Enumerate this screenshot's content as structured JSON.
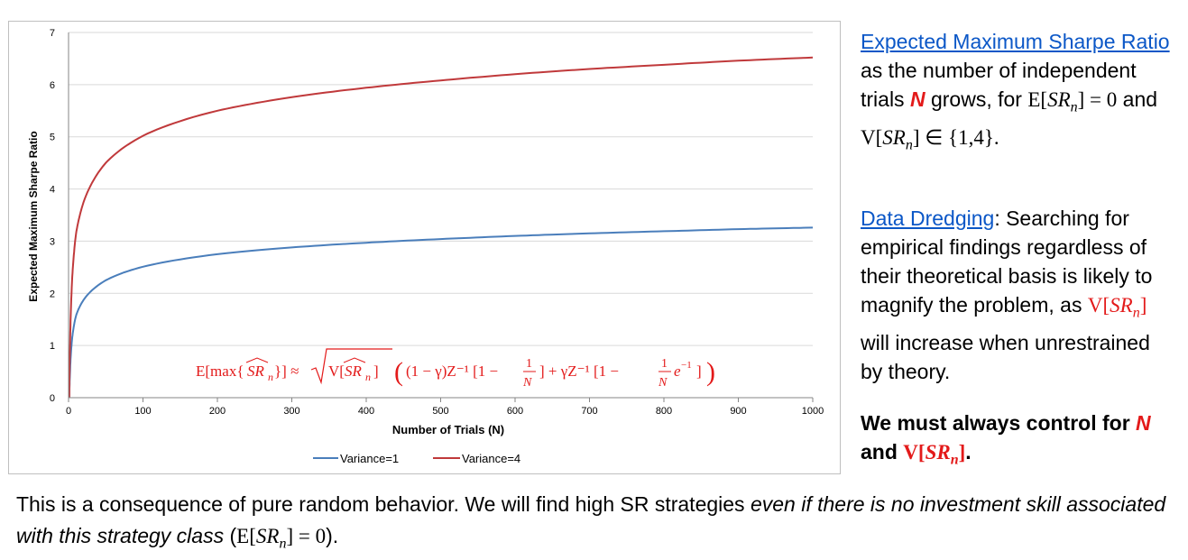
{
  "chart_data": {
    "type": "line",
    "ylabel": "Expected Maximum Sharpe Ratio",
    "xlabel": "Number of Trials (N)",
    "xlim": [
      0,
      1000
    ],
    "ylim": [
      0,
      7
    ],
    "x_ticks": [
      "0",
      "100",
      "200",
      "300",
      "400",
      "500",
      "600",
      "700",
      "800",
      "900",
      "1000"
    ],
    "y_ticks": [
      "0",
      "1",
      "2",
      "3",
      "4",
      "5",
      "6",
      "7"
    ],
    "grid": "horizontal",
    "legend_position": "bottom",
    "series": [
      {
        "name": "Variance=1",
        "color": "#4a7ebb",
        "x": [
          1,
          2,
          5,
          10,
          20,
          50,
          100,
          200,
          300,
          400,
          500,
          600,
          700,
          800,
          900,
          1000
        ],
        "values": [
          0,
          0.52,
          1.16,
          1.57,
          1.87,
          2.25,
          2.51,
          2.75,
          2.88,
          2.97,
          3.04,
          3.1,
          3.15,
          3.19,
          3.23,
          3.26
        ]
      },
      {
        "name": "Variance=4",
        "color": "#c0393b",
        "x": [
          1,
          2,
          5,
          10,
          20,
          50,
          100,
          200,
          300,
          400,
          500,
          600,
          700,
          800,
          900,
          1000
        ],
        "values": [
          0,
          1.04,
          2.32,
          3.14,
          3.74,
          4.5,
          5.02,
          5.5,
          5.76,
          5.94,
          6.08,
          6.2,
          6.3,
          6.38,
          6.46,
          6.52
        ]
      }
    ],
    "annotation": {
      "lhs": "E[max{",
      "sr": "SR",
      "sub": "n",
      "mid": "}] ≈ √V[",
      "rhs": "] ((1 − γ)Z⁻¹[1 − 1/N] + γZ⁻¹[1 − 1/N e⁻¹])",
      "color": "#e31a1a"
    }
  },
  "side": {
    "p1_link": "Expected Maximum Sharpe Ratio",
    "p1_text_a": " as the number of independent trials ",
    "p1_N": "N",
    "p1_text_b": " grows, for ",
    "p1_math_a": "E[",
    "p1_sr": "SR",
    "p1_sub": "n",
    "p1_math_b": "] = 0",
    "p1_and": " and ",
    "p1_math_c": "V[",
    "p1_math_d": "] ∈ {1,4}.",
    "p2_link": "Data Dredging",
    "p2_text_a": ": Searching for empirical findings regardless of their theoretical basis is likely to magnify the problem, as ",
    "p2_math_a": "V[",
    "p2_math_b": "]",
    "p2_text_b": " will increase when unrestrained by theory.",
    "p3_text_a": "We must always control for ",
    "p3_N": "N",
    "p3_text_b": " and ",
    "p3_math_a": "V[",
    "p3_math_b": "]",
    "p3_text_c": "."
  },
  "bottom": {
    "text_a": "This is a consequence of pure random behavior. We will find high SR strategies ",
    "italic": "even if there is no investment skill associated with this strategy class",
    "text_b": " (",
    "math_a": "E[",
    "math_b": "] = 0",
    "text_c": ")."
  }
}
